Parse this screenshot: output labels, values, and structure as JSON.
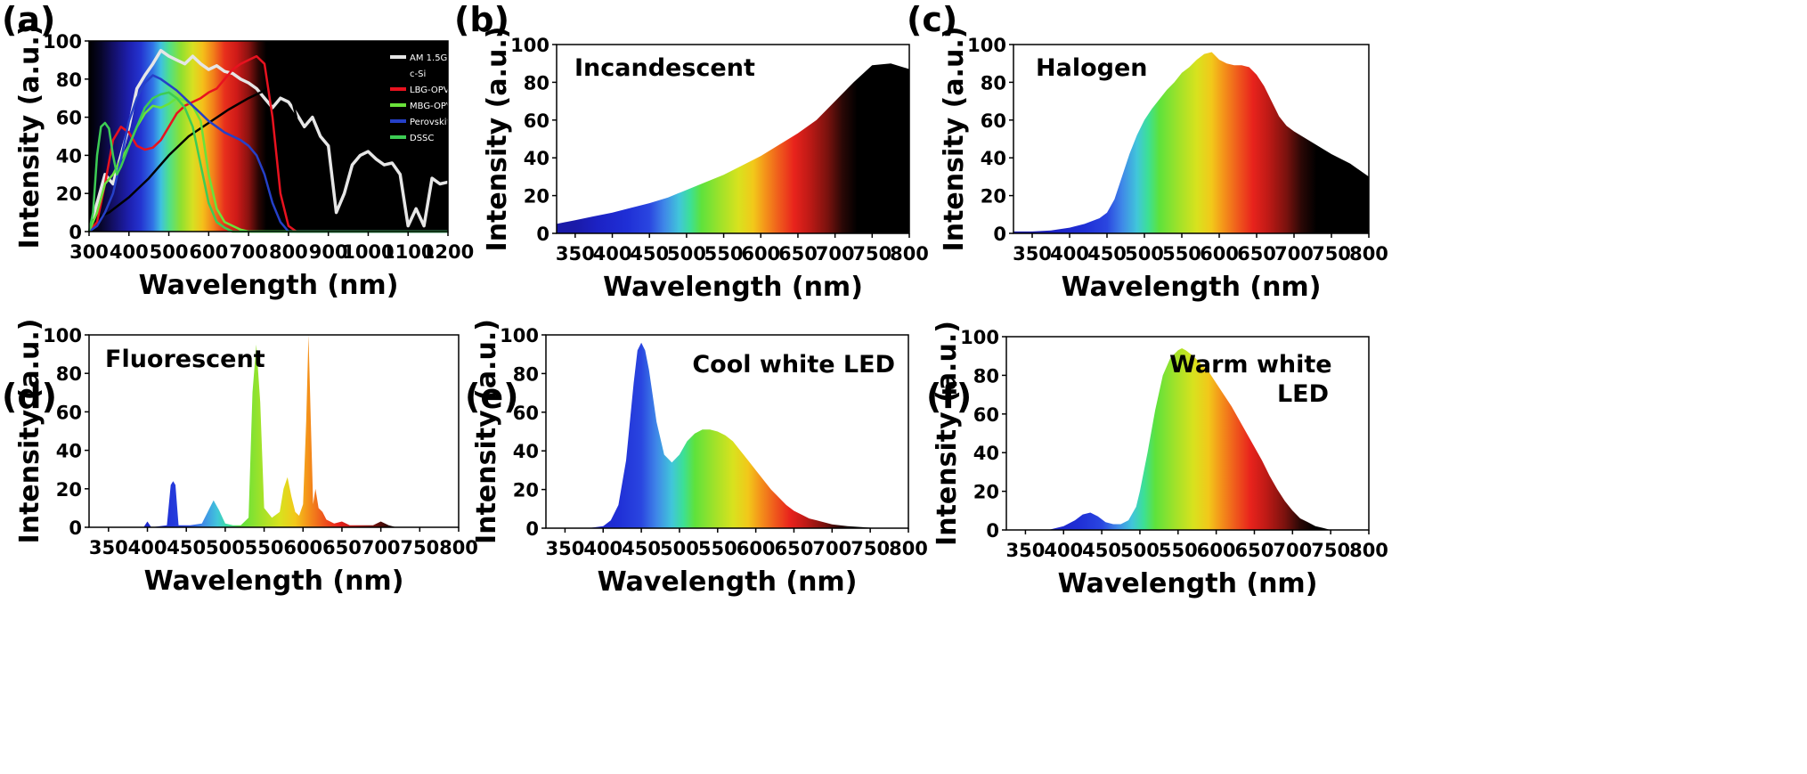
{
  "colors": {
    "background": "#ffffff",
    "axis": "#000000"
  },
  "chart_data": [
    {
      "id": "a",
      "panel_label": "(a)",
      "type": "line",
      "background": "visible spectrum",
      "xlabel": "Wavelength (nm)",
      "ylabel": "Intensity (a.u.)",
      "xlim": [
        300,
        1200
      ],
      "ylim": [
        0,
        100
      ],
      "x_ticks": [
        300,
        400,
        500,
        600,
        700,
        800,
        900,
        1000,
        1100,
        1200
      ],
      "x_tick_labels": [
        "300",
        "400",
        "500",
        "600",
        "700",
        "800",
        "900",
        "1000",
        "1100",
        "1200"
      ],
      "y_ticks": [
        0,
        20,
        40,
        60,
        80,
        100
      ],
      "legend_position": "top-right",
      "series": [
        {
          "name": "AM 1.5G",
          "color": "#e6e6e6",
          "x": [
            300,
            320,
            340,
            360,
            380,
            400,
            420,
            440,
            460,
            480,
            500,
            520,
            540,
            560,
            580,
            600,
            620,
            640,
            660,
            680,
            700,
            720,
            740,
            760,
            780,
            800,
            820,
            840,
            860,
            880,
            900,
            920,
            940,
            960,
            980,
            1000,
            1020,
            1040,
            1060,
            1080,
            1100,
            1120,
            1140,
            1160,
            1180,
            1200
          ],
          "y": [
            0,
            15,
            30,
            25,
            40,
            55,
            75,
            82,
            88,
            95,
            92,
            90,
            88,
            92,
            88,
            85,
            87,
            84,
            83,
            80,
            78,
            75,
            70,
            65,
            70,
            68,
            62,
            55,
            60,
            50,
            45,
            10,
            20,
            35,
            40,
            42,
            38,
            35,
            36,
            30,
            3,
            12,
            3,
            28,
            25,
            26
          ]
        },
        {
          "name": "c-Si",
          "color": "#000000",
          "x": [
            300,
            350,
            400,
            450,
            500,
            550,
            600,
            650,
            700,
            750,
            800,
            820,
            850,
            900,
            1000,
            1200
          ],
          "y": [
            5,
            10,
            18,
            28,
            40,
            50,
            57,
            64,
            70,
            75,
            77,
            60,
            3,
            0,
            0,
            0
          ]
        },
        {
          "name": "LBG-OPV",
          "color": "#e8121f",
          "x": [
            300,
            320,
            340,
            360,
            380,
            400,
            420,
            440,
            460,
            480,
            500,
            520,
            540,
            560,
            580,
            600,
            620,
            640,
            660,
            680,
            700,
            720,
            740,
            760,
            780,
            800,
            820,
            840,
            1200
          ],
          "y": [
            0,
            5,
            25,
            48,
            55,
            52,
            45,
            43,
            44,
            48,
            55,
            62,
            66,
            68,
            70,
            73,
            75,
            80,
            85,
            88,
            90,
            92,
            88,
            60,
            20,
            3,
            0,
            0,
            0
          ]
        },
        {
          "name": "MBG-OPV",
          "color": "#6ae23a",
          "x": [
            300,
            320,
            340,
            360,
            380,
            400,
            420,
            440,
            460,
            480,
            500,
            520,
            540,
            560,
            580,
            600,
            620,
            640,
            660,
            680,
            700,
            720,
            1200
          ],
          "y": [
            0,
            10,
            25,
            30,
            38,
            45,
            55,
            62,
            66,
            65,
            67,
            70,
            69,
            66,
            58,
            30,
            12,
            5,
            3,
            1,
            0,
            0,
            0
          ]
        },
        {
          "name": "Perovskite",
          "color": "#2540c8",
          "x": [
            300,
            320,
            340,
            360,
            380,
            400,
            420,
            440,
            460,
            480,
            500,
            520,
            540,
            560,
            580,
            600,
            620,
            640,
            660,
            680,
            700,
            720,
            740,
            760,
            780,
            800,
            1200
          ],
          "y": [
            0,
            3,
            10,
            20,
            38,
            58,
            70,
            78,
            82,
            80,
            77,
            74,
            70,
            66,
            62,
            58,
            55,
            52,
            50,
            48,
            45,
            40,
            30,
            15,
            5,
            0,
            0
          ]
        },
        {
          "name": "DSSC",
          "color": "#3dcc54",
          "x": [
            300,
            310,
            320,
            330,
            340,
            350,
            360,
            370,
            380,
            400,
            420,
            440,
            460,
            480,
            500,
            520,
            540,
            560,
            580,
            600,
            620,
            640,
            660,
            680,
            700,
            1200
          ],
          "y": [
            0,
            10,
            40,
            55,
            57,
            54,
            40,
            30,
            34,
            45,
            55,
            65,
            70,
            72,
            73,
            70,
            65,
            55,
            35,
            15,
            5,
            2,
            0,
            0,
            0,
            0
          ]
        }
      ]
    },
    {
      "id": "b",
      "panel_label": "(b)",
      "type": "area",
      "title": "Incandescent",
      "xlabel": "Wavelength (nm)",
      "ylabel": "Intensity (a.u.)",
      "xlim": [
        325,
        800
      ],
      "ylim": [
        0,
        100
      ],
      "x_ticks": [
        350,
        400,
        450,
        500,
        550,
        600,
        650,
        700,
        750,
        800
      ],
      "y_ticks": [
        0,
        20,
        40,
        60,
        80,
        100
      ],
      "x": [
        325,
        350,
        375,
        400,
        425,
        450,
        475,
        500,
        525,
        550,
        575,
        600,
        625,
        650,
        675,
        700,
        725,
        750,
        775,
        800
      ],
      "y": [
        5,
        7,
        9,
        11,
        13.5,
        16,
        19,
        23,
        27,
        31,
        36,
        41,
        47,
        53,
        60,
        70,
        80,
        89,
        90,
        87
      ]
    },
    {
      "id": "c",
      "panel_label": "(c)",
      "type": "area",
      "title": "Halogen",
      "xlabel": "Wavelength (nm)",
      "ylabel": "Intensity (a.u.)",
      "xlim": [
        325,
        800
      ],
      "ylim": [
        0,
        100
      ],
      "x_ticks": [
        350,
        400,
        450,
        500,
        550,
        600,
        650,
        700,
        750,
        800
      ],
      "y_ticks": [
        0,
        20,
        40,
        60,
        80,
        100
      ],
      "x": [
        325,
        350,
        375,
        400,
        420,
        440,
        450,
        460,
        470,
        480,
        490,
        500,
        510,
        520,
        530,
        540,
        550,
        560,
        570,
        580,
        590,
        600,
        610,
        620,
        630,
        640,
        650,
        660,
        670,
        680,
        690,
        700,
        725,
        750,
        775,
        800
      ],
      "y": [
        1,
        1,
        1.5,
        3,
        5,
        8,
        11,
        18,
        30,
        42,
        52,
        60,
        66,
        71,
        76,
        80,
        85,
        88,
        92,
        95,
        96,
        92,
        90,
        89,
        89,
        88,
        84,
        78,
        70,
        62,
        57,
        54,
        48,
        42,
        37,
        30
      ]
    },
    {
      "id": "d",
      "panel_label": "(d)",
      "type": "area",
      "title": "Fluorescent",
      "xlabel": "Wavelength (nm)",
      "ylabel": "Intensity (a.u.)",
      "xlim": [
        325,
        800
      ],
      "ylim": [
        0,
        100
      ],
      "x_ticks": [
        350,
        400,
        450,
        500,
        550,
        600,
        650,
        700,
        750,
        800
      ],
      "y_ticks": [
        0,
        20,
        40,
        60,
        80,
        100
      ],
      "x": [
        325,
        395,
        400,
        405,
        425,
        430,
        433,
        436,
        440,
        455,
        470,
        480,
        485,
        492,
        500,
        510,
        520,
        530,
        535,
        540,
        545,
        550,
        560,
        570,
        575,
        580,
        585,
        590,
        595,
        600,
        604,
        607,
        610,
        613,
        616,
        620,
        625,
        630,
        640,
        650,
        660,
        670,
        680,
        690,
        700,
        710,
        720,
        800
      ],
      "y": [
        0,
        0,
        3,
        0,
        1,
        22,
        24,
        22,
        1,
        1,
        2,
        10,
        14,
        9,
        2,
        1,
        1,
        5,
        70,
        95,
        65,
        10,
        5,
        8,
        20,
        26,
        16,
        8,
        6,
        12,
        55,
        100,
        55,
        12,
        20,
        10,
        8,
        4,
        2,
        3,
        1,
        1,
        1,
        1,
        3,
        1,
        0,
        0
      ]
    },
    {
      "id": "e",
      "panel_label": "(e)",
      "type": "area",
      "title": "Cool white LED",
      "xlabel": "Wavelength (nm)",
      "ylabel": "Intensity (a.u.)",
      "xlim": [
        325,
        800
      ],
      "ylim": [
        0,
        100
      ],
      "x_ticks": [
        350,
        400,
        450,
        500,
        550,
        600,
        650,
        700,
        750,
        800
      ],
      "y_ticks": [
        0,
        20,
        40,
        60,
        80,
        100
      ],
      "x": [
        325,
        380,
        400,
        410,
        420,
        430,
        440,
        445,
        450,
        455,
        460,
        470,
        480,
        490,
        500,
        510,
        520,
        530,
        540,
        550,
        560,
        570,
        580,
        590,
        600,
        610,
        620,
        630,
        640,
        650,
        660,
        670,
        680,
        700,
        720,
        740,
        760,
        800
      ],
      "y": [
        0,
        0,
        1,
        4,
        12,
        35,
        75,
        92,
        96,
        92,
        82,
        55,
        38,
        34,
        38,
        45,
        49,
        51,
        51,
        50,
        48,
        45,
        40,
        35,
        30,
        25,
        20,
        16,
        12,
        9,
        7,
        5,
        4,
        2,
        1,
        0.5,
        0,
        0
      ]
    },
    {
      "id": "f",
      "panel_label": "(f)",
      "type": "area",
      "title": "Warm white LED",
      "xlabel": "Wavelength (nm)",
      "ylabel": "Intensity (a.u.)",
      "xlim": [
        325,
        800
      ],
      "ylim": [
        0,
        100
      ],
      "x_ticks": [
        350,
        400,
        450,
        500,
        550,
        600,
        650,
        700,
        750,
        800
      ],
      "y_ticks": [
        0,
        20,
        40,
        60,
        80,
        100
      ],
      "x": [
        325,
        380,
        400,
        415,
        425,
        435,
        445,
        455,
        465,
        475,
        485,
        495,
        500,
        510,
        520,
        530,
        540,
        550,
        555,
        560,
        570,
        580,
        590,
        600,
        610,
        620,
        630,
        640,
        650,
        660,
        670,
        680,
        690,
        700,
        710,
        720,
        730,
        740,
        750,
        800
      ],
      "y": [
        0,
        0,
        2,
        5,
        8,
        9,
        7,
        4,
        3,
        3,
        5,
        12,
        20,
        40,
        62,
        80,
        89,
        93,
        94,
        93,
        90,
        86,
        82,
        76,
        70,
        64,
        57,
        50,
        43,
        36,
        28,
        21,
        15,
        10,
        6,
        4,
        2,
        1,
        0,
        0
      ]
    }
  ]
}
